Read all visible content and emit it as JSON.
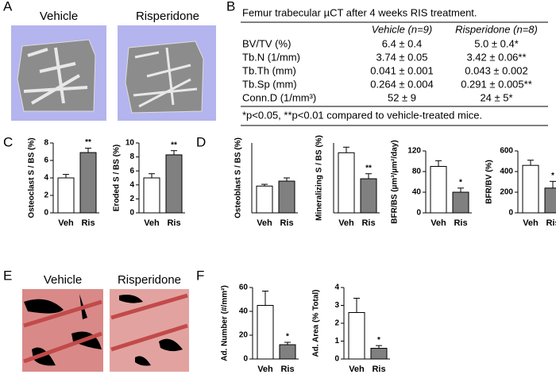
{
  "panels": [
    "A",
    "B",
    "C",
    "D",
    "E",
    "F"
  ],
  "images_a": [
    "Vehicle",
    "Risperidone"
  ],
  "images_e": [
    "Vehicle",
    "Risperidone"
  ],
  "table": {
    "title": "Femur trabecular µCT after 4 weeks RIS treatment.",
    "header": [
      "Vehicle (n=9)",
      "Risperidone (n=8)"
    ],
    "rows": [
      [
        "BV/TV (%)",
        "6.4 ± 0.4",
        "5.0 ± 0.4*"
      ],
      [
        "Tb.N (1/mm)",
        "3.74 ± 0.05",
        "3.42 ± 0.06**"
      ],
      [
        "Tb.Th (mm)",
        "0.041 ± 0.001",
        "0.043 ± 0.002"
      ],
      [
        "Tb.Sp (mm)",
        "0.264 ± 0.004",
        "0.291 ± 0.005**"
      ],
      [
        "Conn.D (1/mm³)",
        "52 ± 9",
        "24 ± 5*"
      ]
    ],
    "footnote": "*p<0.05, **p<0.01 compared to vehicle-treated mice."
  },
  "chart_data": [
    {
      "type": "bar",
      "ylabel": "Osteoclast S / BS (%)",
      "categories": [
        "Veh",
        "Ris"
      ],
      "values": [
        4.0,
        6.9
      ],
      "errors": [
        0.4,
        0.5
      ],
      "annotations": [
        null,
        "**"
      ],
      "colors": [
        "#ffffff",
        "#808080"
      ],
      "ylim": [
        0,
        8
      ],
      "yticks": [
        0,
        2,
        4,
        6,
        8
      ]
    },
    {
      "type": "bar",
      "ylabel": "Eroded S / BS (%)",
      "categories": [
        "Veh",
        "Ris"
      ],
      "values": [
        5.0,
        8.3
      ],
      "errors": [
        0.6,
        0.6
      ],
      "annotations": [
        null,
        "**"
      ],
      "colors": [
        "#ffffff",
        "#808080"
      ],
      "ylim": [
        0,
        10
      ],
      "yticks": [
        0,
        2,
        4,
        6,
        8,
        10
      ]
    },
    {
      "type": "bar",
      "ylabel": "Osteoblast S / BS (%)",
      "categories": [
        "Veh",
        "Ris"
      ],
      "values": [
        9.2,
        10.9
      ],
      "errors": [
        0.6,
        1.1
      ],
      "colors": [
        "#ffffff",
        "#808080"
      ],
      "ylim": [
        0,
        24
      ]
    },
    {
      "type": "bar",
      "ylabel": "Mineralizing S / BS (%)",
      "categories": [
        "Veh",
        "Ris"
      ],
      "values": [
        21.5,
        12.2
      ],
      "errors": [
        2.0,
        1.8
      ],
      "annotations": [
        null,
        "**"
      ],
      "colors": [
        "#ffffff",
        "#808080"
      ],
      "ylim": [
        0,
        25
      ]
    },
    {
      "type": "bar",
      "ylabel": "BFR/BS (µm³/µm²/day)",
      "categories": [
        "Veh",
        "Ris"
      ],
      "values": [
        90,
        40
      ],
      "errors": [
        11,
        8
      ],
      "annotations": [
        null,
        "*"
      ],
      "colors": [
        "#ffffff",
        "#808080"
      ],
      "ylim": [
        0,
        120
      ],
      "yticks": [
        0,
        40,
        80,
        120
      ]
    },
    {
      "type": "bar",
      "ylabel": "BFR/BV (%)",
      "categories": [
        "Veh",
        "Ris"
      ],
      "values": [
        460,
        240
      ],
      "errors": [
        50,
        65
      ],
      "annotations": [
        null,
        "*"
      ],
      "colors": [
        "#ffffff",
        "#808080"
      ],
      "ylim": [
        0,
        600
      ],
      "yticks": [
        0,
        200,
        400,
        600
      ]
    },
    {
      "type": "bar",
      "ylabel": "Ad. Number (#/mm²)",
      "categories": [
        "Veh",
        "Ris"
      ],
      "values": [
        45,
        12
      ],
      "errors": [
        12,
        2
      ],
      "annotations": [
        null,
        "*"
      ],
      "colors": [
        "#ffffff",
        "#808080"
      ],
      "ylim": [
        0,
        60
      ],
      "yticks": [
        0,
        20,
        40,
        60
      ]
    },
    {
      "type": "bar",
      "ylabel": "Ad. Area (% Total)",
      "categories": [
        "Veh",
        "Ris"
      ],
      "values": [
        2.6,
        0.6
      ],
      "errors": [
        0.8,
        0.15
      ],
      "annotations": [
        null,
        "*"
      ],
      "colors": [
        "#ffffff",
        "#808080"
      ],
      "ylim": [
        0,
        4
      ],
      "yticks": [
        0,
        1,
        2,
        3,
        4
      ]
    }
  ]
}
